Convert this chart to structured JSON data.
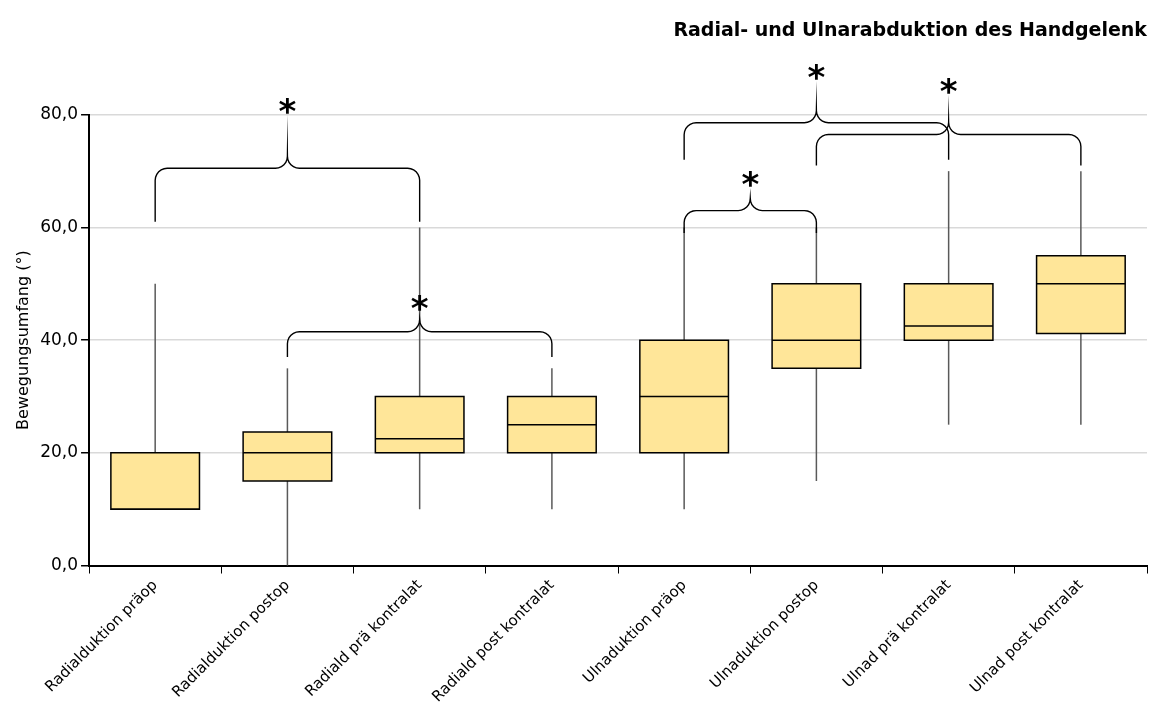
{
  "chart_data": {
    "type": "box",
    "title": "Radial- und Ulnarabduktion des Handgelenk",
    "ylabel": "Bewegungsumfang (°)",
    "categories": [
      "Radialduktion präop",
      "Radialduktion postop",
      "Radiald prä kontralat",
      "Radiald post kontralat",
      "Ulnaduktion präop",
      "Ulnaduktion postop",
      "Ulnad prä kontralat",
      "Ulnad post kontralat"
    ],
    "color": "#ffe699",
    "boxes": [
      {
        "low": 10,
        "q1": 10,
        "median": 10,
        "q3": 20,
        "high": 50
      },
      {
        "low": 0,
        "q1": 15,
        "median": 20,
        "q3": 23.7,
        "high": 35
      },
      {
        "low": 10,
        "q1": 20,
        "median": 22.5,
        "q3": 30,
        "high": 60
      },
      {
        "low": 10,
        "q1": 20,
        "median": 25,
        "q3": 30,
        "high": 35
      },
      {
        "low": 10,
        "q1": 20,
        "median": 30,
        "q3": 40,
        "high": 60
      },
      {
        "low": 15,
        "q1": 35,
        "median": 40,
        "q3": 50,
        "high": 60
      },
      {
        "low": 25,
        "q1": 40,
        "median": 42.5,
        "q3": 50,
        "high": 70
      },
      {
        "low": 25,
        "q1": 41.2,
        "median": 50,
        "q3": 55,
        "high": 70
      }
    ],
    "ylim": [
      0,
      80
    ],
    "yticks": [
      {
        "value": 0,
        "label": "0,0"
      },
      {
        "value": 20,
        "label": "20,0"
      },
      {
        "value": 40,
        "label": "40,0"
      },
      {
        "value": 60,
        "label": "60,0"
      },
      {
        "value": 80,
        "label": "80,0"
      }
    ],
    "grid": "y",
    "legend": false,
    "annotations": [
      "*",
      "*",
      "*",
      "*",
      "*"
    ]
  }
}
